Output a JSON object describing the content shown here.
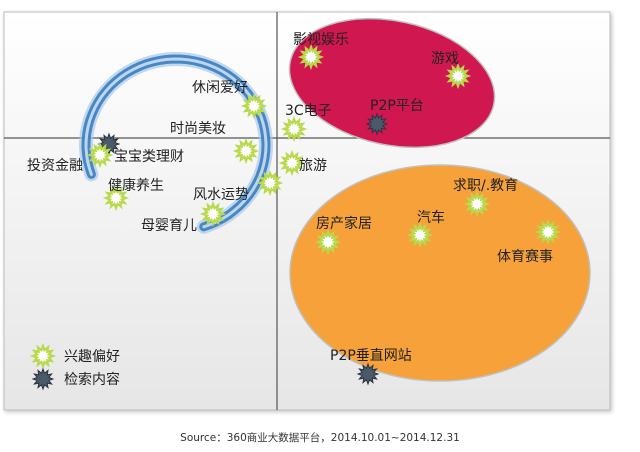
{
  "chart_data": {
    "type": "scatter",
    "title": "",
    "xlabel": "",
    "ylabel": "",
    "grid": false,
    "legend_placement": "bottom-left",
    "series": [
      {
        "key": "interest",
        "name": "兴趣偏好",
        "color": "#b8d94a"
      },
      {
        "key": "search",
        "name": "检索内容",
        "color": "#4a5a6a"
      }
    ],
    "points": [
      {
        "label": "影视娱乐",
        "series": "interest"
      },
      {
        "label": "游戏",
        "series": "interest"
      },
      {
        "label": "休闲爱好",
        "series": "interest"
      },
      {
        "label": "3C电子",
        "series": "interest"
      },
      {
        "label": "P2P平台",
        "series": "search"
      },
      {
        "label": "时尚美妆",
        "series": "interest"
      },
      {
        "label": "宝宝类理财",
        "series": "search"
      },
      {
        "label": "投资金融",
        "series": "interest"
      },
      {
        "label": "旅游",
        "series": "interest"
      },
      {
        "label": "健康养生",
        "series": "interest"
      },
      {
        "label": "风水运势",
        "series": "interest"
      },
      {
        "label": "母婴育儿",
        "series": "interest"
      },
      {
        "label": "求职/.教育",
        "series": "interest"
      },
      {
        "label": "房产家居",
        "series": "interest"
      },
      {
        "label": "汽车",
        "series": "interest"
      },
      {
        "label": "体育赛事",
        "series": "interest"
      },
      {
        "label": "P2P垂直网站",
        "series": "search"
      }
    ],
    "clusters": [
      {
        "color": "#d0174f"
      },
      {
        "color": "#f7a13a"
      },
      {
        "color": "#3a7ec0"
      }
    ]
  },
  "source": "Source：360商业大数据平台，2014.10.01~2014.12.31"
}
